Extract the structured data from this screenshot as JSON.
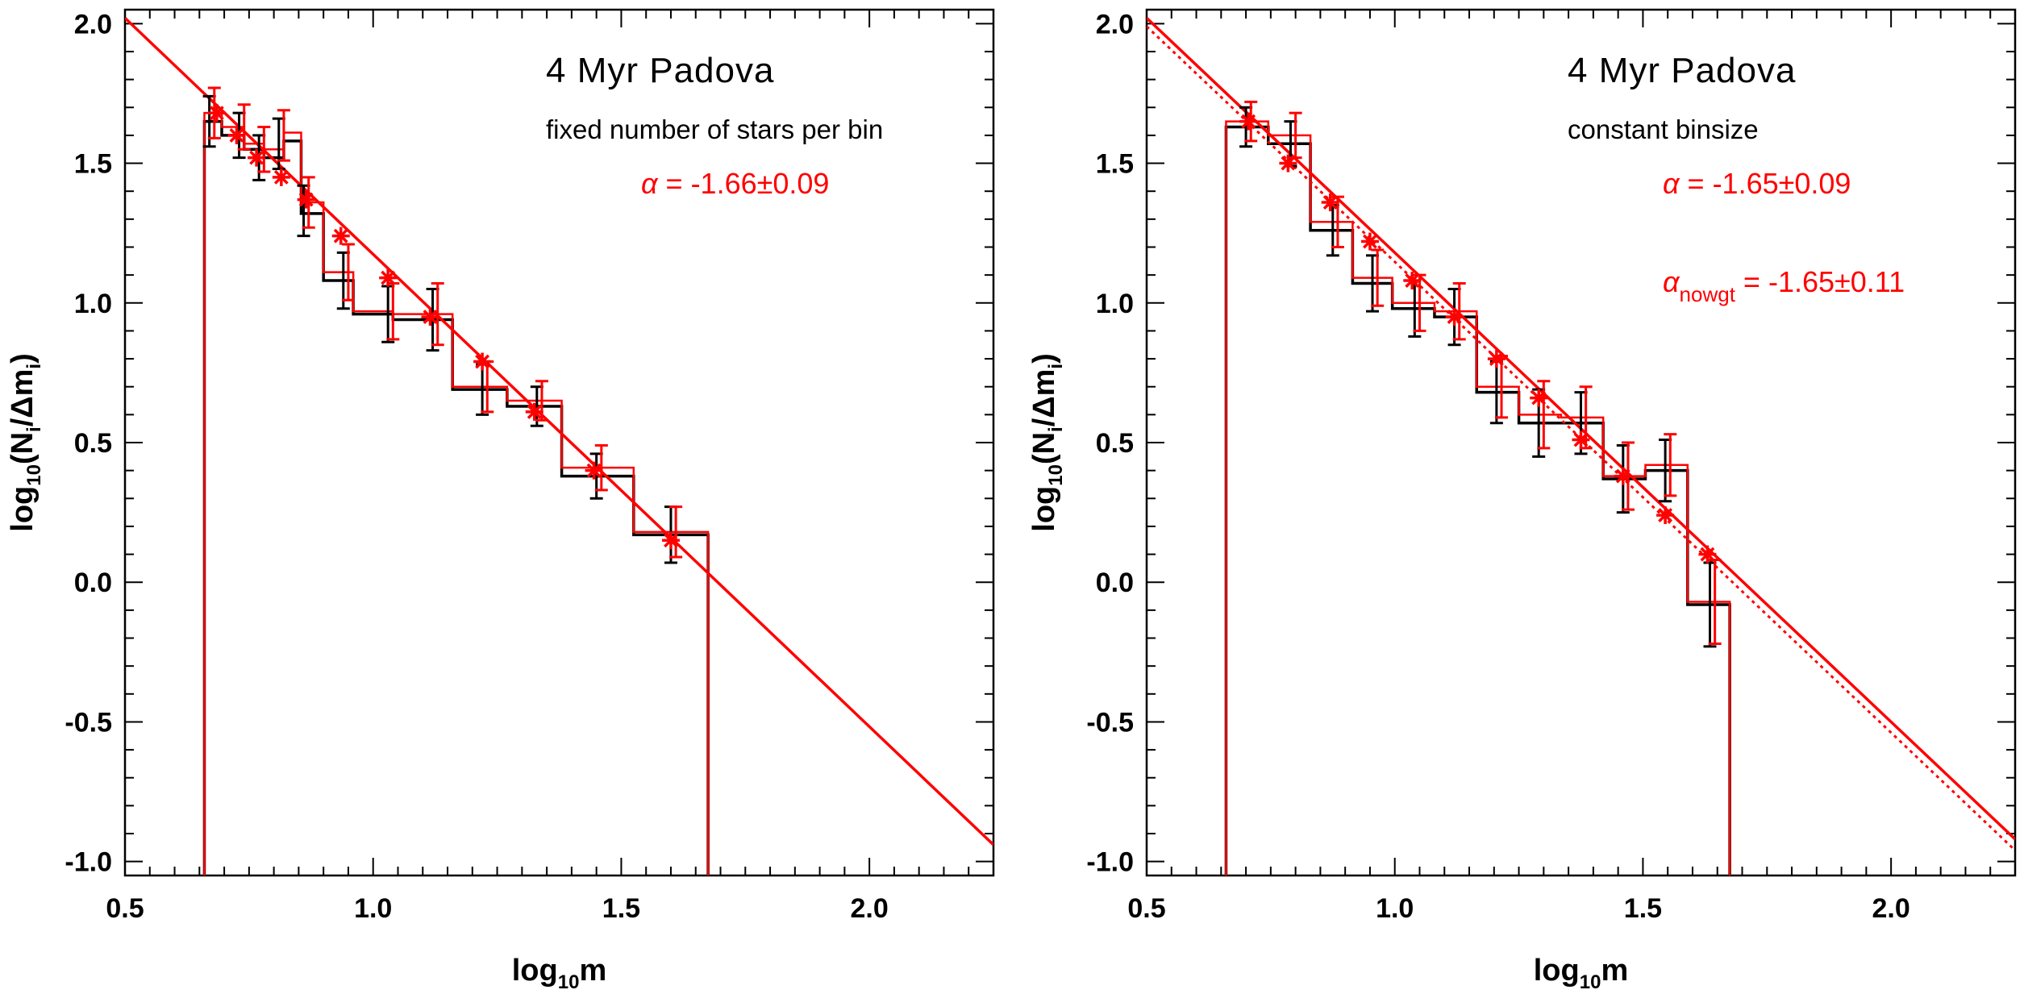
{
  "chart_data": [
    {
      "type": "line",
      "panel": "left",
      "title": "4 Myr Padova",
      "subtitle": "fixed number of stars per bin",
      "annotation": {
        "symbol": "α",
        "eq": " = ",
        "text": "-1.66±0.09"
      },
      "xlabel": "log10m",
      "ylabel": "log10(Ni/Δmi)",
      "xlim": [
        0.5,
        2.25
      ],
      "ylim": [
        -1.05,
        2.05
      ],
      "x_ticks": [
        "0.5",
        "1.0",
        "1.5",
        "2.0"
      ],
      "y_ticks": [
        "2.0",
        "1.5",
        "1.0",
        "0.5",
        "0.0",
        "-0.5",
        "-1.0"
      ],
      "fit_lines": [
        {
          "name": "fit",
          "color": "#ff0000",
          "dash": false,
          "x": [
            0.5,
            2.25
          ],
          "y": [
            2.02,
            -0.94
          ]
        }
      ],
      "series": [
        {
          "name": "histogram-black",
          "color": "#000000",
          "edges": [
            0.66,
            0.695,
            0.74,
            0.78,
            0.82,
            0.855,
            0.9,
            0.96,
            1.04,
            1.16,
            1.27,
            1.38,
            1.525,
            1.675
          ],
          "values": [
            1.65,
            1.6,
            1.55,
            1.52,
            1.58,
            1.32,
            1.08,
            0.96,
            0.94,
            0.69,
            0.63,
            0.38,
            0.17
          ]
        },
        {
          "name": "histogram-red",
          "color": "#ff0000",
          "edges": [
            0.66,
            0.695,
            0.74,
            0.78,
            0.82,
            0.855,
            0.9,
            0.96,
            1.04,
            1.16,
            1.27,
            1.38,
            1.525,
            1.675
          ],
          "values": [
            1.68,
            1.63,
            1.57,
            1.55,
            1.61,
            1.36,
            1.11,
            0.97,
            0.96,
            0.7,
            0.65,
            0.41,
            0.18
          ]
        },
        {
          "name": "error-bars-black",
          "color": "#000000",
          "x": [
            0.67,
            0.73,
            0.77,
            0.81,
            0.86,
            0.94,
            1.03,
            1.12,
            1.22,
            1.33,
            1.45,
            1.6
          ],
          "y": [
            1.65,
            1.6,
            1.52,
            1.57,
            1.33,
            1.08,
            0.96,
            0.94,
            0.69,
            0.63,
            0.38,
            0.17
          ],
          "err": [
            0.09,
            0.08,
            0.08,
            0.09,
            0.09,
            0.1,
            0.1,
            0.11,
            0.09,
            0.07,
            0.08,
            0.1
          ]
        },
        {
          "name": "error-bars-red",
          "color": "#ff0000",
          "x": [
            0.68,
            0.74,
            0.78,
            0.82,
            0.87,
            0.95,
            1.04,
            1.13,
            1.23,
            1.34,
            1.46,
            1.61
          ],
          "y": [
            1.68,
            1.63,
            1.55,
            1.6,
            1.36,
            1.11,
            0.97,
            0.96,
            0.7,
            0.65,
            0.41,
            0.18
          ],
          "err": [
            0.09,
            0.08,
            0.08,
            0.09,
            0.09,
            0.1,
            0.1,
            0.11,
            0.09,
            0.07,
            0.08,
            0.09
          ]
        },
        {
          "name": "fit-points",
          "color": "#ff0000",
          "x": [
            0.685,
            0.725,
            0.765,
            0.815,
            0.865,
            0.935,
            1.03,
            1.115,
            1.22,
            1.325,
            1.445,
            1.6
          ],
          "y": [
            1.68,
            1.6,
            1.52,
            1.45,
            1.37,
            1.24,
            1.09,
            0.95,
            0.79,
            0.61,
            0.4,
            0.15
          ]
        }
      ]
    },
    {
      "type": "line",
      "panel": "right",
      "title": "4 Myr Padova",
      "subtitle": "constant binsize",
      "annotation": {
        "symbol": "α",
        "eq": " = ",
        "text": "-1.65±0.09"
      },
      "annotation2": {
        "symbol": "α",
        "sub": "nowgt",
        "eq": " = ",
        "text": "-1.65±0.11"
      },
      "xlabel": "log10m",
      "ylabel": "log10(Ni/Δmi)",
      "xlim": [
        0.5,
        2.25
      ],
      "ylim": [
        -1.05,
        2.05
      ],
      "x_ticks": [
        "0.5",
        "1.0",
        "1.5",
        "2.0"
      ],
      "y_ticks": [
        "2.0",
        "1.5",
        "1.0",
        "0.5",
        "0.0",
        "-0.5",
        "-1.0"
      ],
      "fit_lines": [
        {
          "name": "fit-weighted",
          "color": "#ff0000",
          "dash": false,
          "x": [
            0.5,
            2.25
          ],
          "y": [
            2.02,
            -0.92
          ]
        },
        {
          "name": "fit-unweighted",
          "color": "#ff0000",
          "dash": true,
          "x": [
            0.5,
            2.25
          ],
          "y": [
            1.99,
            -0.96
          ]
        }
      ],
      "series": [
        {
          "name": "histogram-black",
          "color": "#000000",
          "edges": [
            0.66,
            0.745,
            0.83,
            0.915,
            0.995,
            1.08,
            1.165,
            1.25,
            1.335,
            1.42,
            1.505,
            1.59,
            1.675
          ],
          "values": [
            1.63,
            1.57,
            1.26,
            1.07,
            0.98,
            0.95,
            0.68,
            0.57,
            0.57,
            0.37,
            0.4,
            -0.08
          ]
        },
        {
          "name": "histogram-red",
          "color": "#ff0000",
          "edges": [
            0.66,
            0.745,
            0.83,
            0.915,
            0.995,
            1.08,
            1.165,
            1.25,
            1.335,
            1.42,
            1.505,
            1.59,
            1.675
          ],
          "values": [
            1.65,
            1.6,
            1.29,
            1.09,
            1.0,
            0.97,
            0.7,
            0.6,
            0.59,
            0.38,
            0.42,
            -0.07
          ]
        },
        {
          "name": "error-bars-black",
          "color": "#000000",
          "x": [
            0.7,
            0.79,
            0.875,
            0.955,
            1.04,
            1.12,
            1.205,
            1.29,
            1.375,
            1.46,
            1.545,
            1.635
          ],
          "y": [
            1.63,
            1.57,
            1.26,
            1.07,
            0.98,
            0.95,
            0.68,
            0.57,
            0.57,
            0.37,
            0.4,
            -0.08
          ],
          "err": [
            0.07,
            0.08,
            0.09,
            0.1,
            0.1,
            0.1,
            0.11,
            0.12,
            0.11,
            0.12,
            0.11,
            0.15
          ]
        },
        {
          "name": "error-bars-red",
          "color": "#ff0000",
          "x": [
            0.71,
            0.8,
            0.885,
            0.965,
            1.05,
            1.13,
            1.215,
            1.3,
            1.385,
            1.47,
            1.555,
            1.645
          ],
          "y": [
            1.65,
            1.6,
            1.29,
            1.09,
            1.0,
            0.97,
            0.7,
            0.6,
            0.59,
            0.38,
            0.42,
            -0.07
          ],
          "err": [
            0.07,
            0.08,
            0.09,
            0.1,
            0.1,
            0.1,
            0.11,
            0.12,
            0.11,
            0.12,
            0.11,
            0.15
          ]
        },
        {
          "name": "fit-points",
          "color": "#ff0000",
          "x": [
            0.705,
            0.785,
            0.87,
            0.95,
            1.035,
            1.12,
            1.205,
            1.29,
            1.375,
            1.46,
            1.545,
            1.63
          ],
          "y": [
            1.65,
            1.5,
            1.36,
            1.22,
            1.08,
            0.95,
            0.8,
            0.66,
            0.51,
            0.38,
            0.24,
            0.1
          ]
        }
      ]
    }
  ]
}
